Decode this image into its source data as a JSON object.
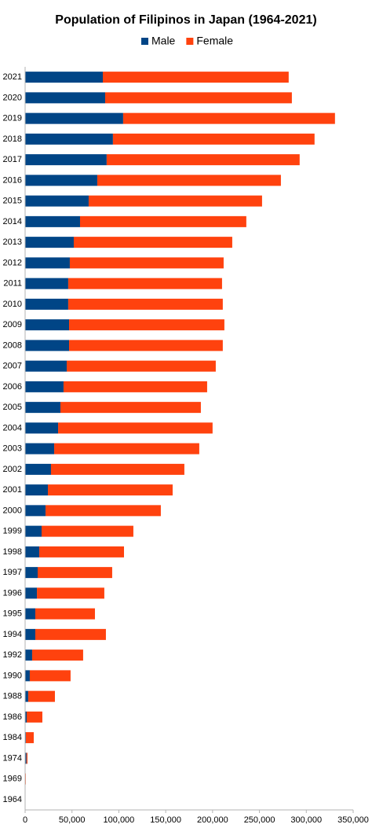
{
  "chart_data": {
    "type": "stacked-barh",
    "title": "Population of Filipinos in Japan (1964-2021)",
    "categories": [
      "2021",
      "2020",
      "2019",
      "2018",
      "2017",
      "2016",
      "2015",
      "2014",
      "2013",
      "2012",
      "2011",
      "2010",
      "2009",
      "2008",
      "2007",
      "2006",
      "2005",
      "2004",
      "2003",
      "2002",
      "2001",
      "2000",
      "1999",
      "1998",
      "1997",
      "1996",
      "1995",
      "1994",
      "1992",
      "1990",
      "1988",
      "1986",
      "1984",
      "1974",
      "1969",
      "1964"
    ],
    "series": [
      {
        "name": "Male",
        "color": "#004586",
        "values": [
          82900,
          85400,
          104600,
          93700,
          87000,
          77000,
          67800,
          58600,
          51900,
          47700,
          46000,
          46000,
          46900,
          46900,
          44400,
          41000,
          37700,
          35200,
          31000,
          27600,
          24300,
          21800,
          17600,
          15100,
          13400,
          12600,
          10900,
          10900,
          7500,
          5000,
          3300,
          1700,
          800,
          1500,
          400,
          200
        ]
      },
      {
        "name": "Female",
        "color": "#ff420e",
        "values": [
          198300,
          199200,
          226000,
          215100,
          205900,
          195900,
          185000,
          177400,
          169100,
          164100,
          164100,
          164900,
          165700,
          164000,
          159000,
          153200,
          149800,
          164800,
          154800,
          142300,
          133100,
          123000,
          97900,
          90400,
          79500,
          71900,
          63600,
          75300,
          54400,
          43500,
          28500,
          16700,
          8400,
          1000,
          300,
          150
        ]
      }
    ],
    "xlim": [
      0,
      350000
    ],
    "xticks": [
      0,
      {
        "value": 50000,
        "label": "50,000"
      },
      {
        "value": 100000,
        "label": "100,000"
      },
      {
        "value": 150000,
        "label": "150,000"
      },
      {
        "value": 200000,
        "label": "200,000"
      },
      {
        "value": 250000,
        "label": "250,000"
      },
      {
        "value": 300000,
        "label": "300,000"
      },
      {
        "value": 350000,
        "label": "350,000"
      }
    ],
    "grid": false,
    "legend": "top"
  }
}
